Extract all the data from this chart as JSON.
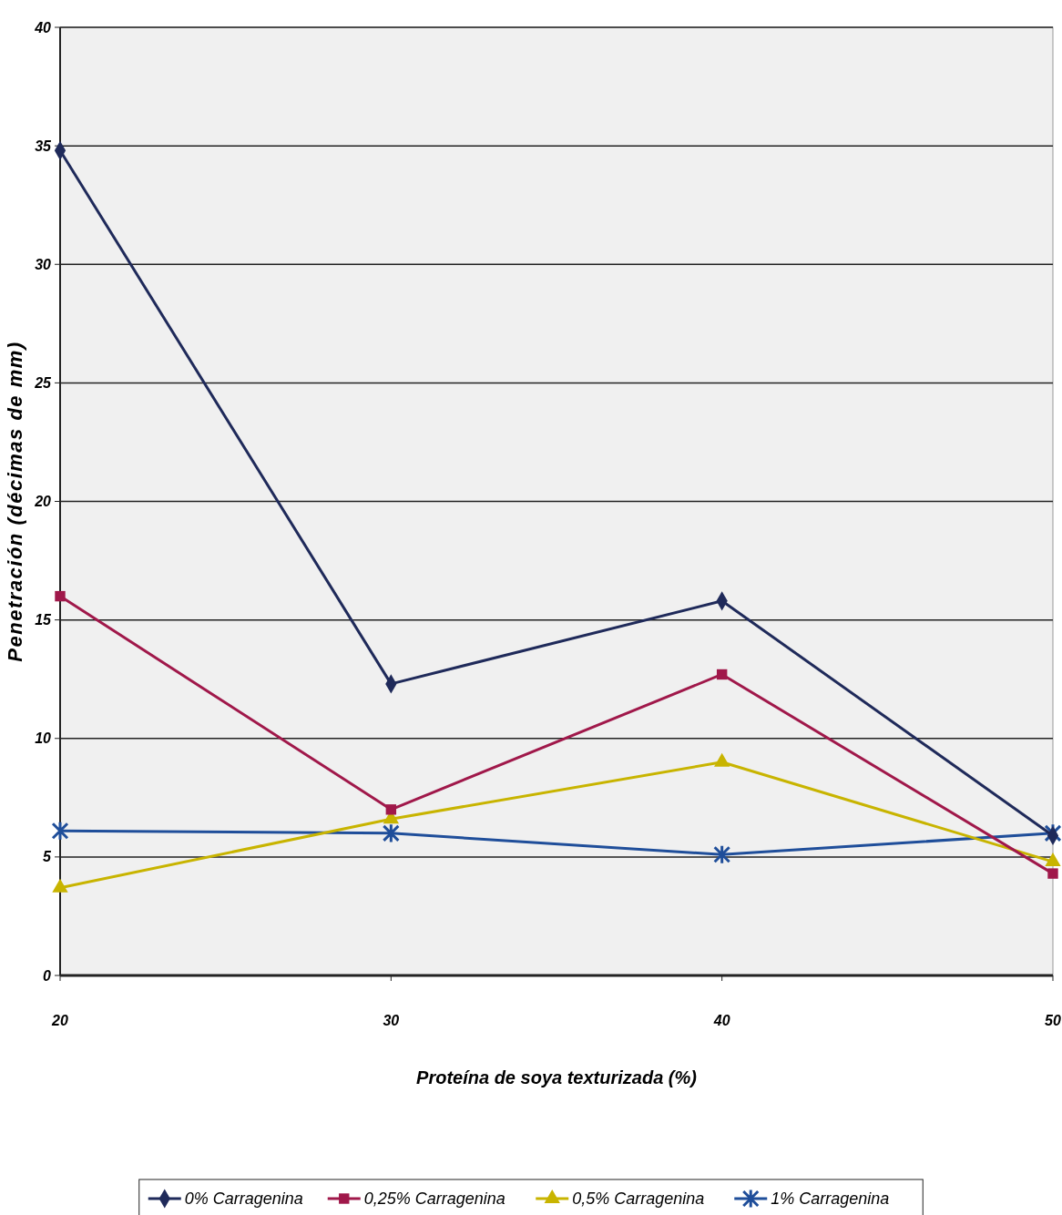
{
  "chart_data": {
    "type": "line",
    "xlabel": "Proteína de soya texturizada (%)",
    "ylabel": "Penetración (décimas de mm)",
    "x": [
      20,
      30,
      40,
      50
    ],
    "xlim": [
      20,
      50
    ],
    "xticks": [
      20,
      30,
      40,
      50
    ],
    "ylim": [
      0,
      40
    ],
    "yticks": [
      0,
      5,
      10,
      15,
      20,
      25,
      30,
      35,
      40
    ],
    "grid": "y",
    "legend": "bottom",
    "series": [
      {
        "name": "0% Carragenina",
        "color": "#1f2a5a",
        "marker": "diamond",
        "values": [
          34.8,
          12.3,
          15.8,
          5.9
        ]
      },
      {
        "name": "0,25% Carragenina",
        "color": "#a0184a",
        "marker": "square",
        "values": [
          16.0,
          7.0,
          12.7,
          4.3
        ]
      },
      {
        "name": "0,5% Carragenina",
        "color": "#c8b400",
        "marker": "triangle",
        "values": [
          3.7,
          6.6,
          9.0,
          4.8
        ]
      },
      {
        "name": "1% Carragenina",
        "color": "#1f4e9a",
        "marker": "cross",
        "values": [
          6.1,
          6.0,
          5.1,
          6.0
        ]
      }
    ]
  }
}
